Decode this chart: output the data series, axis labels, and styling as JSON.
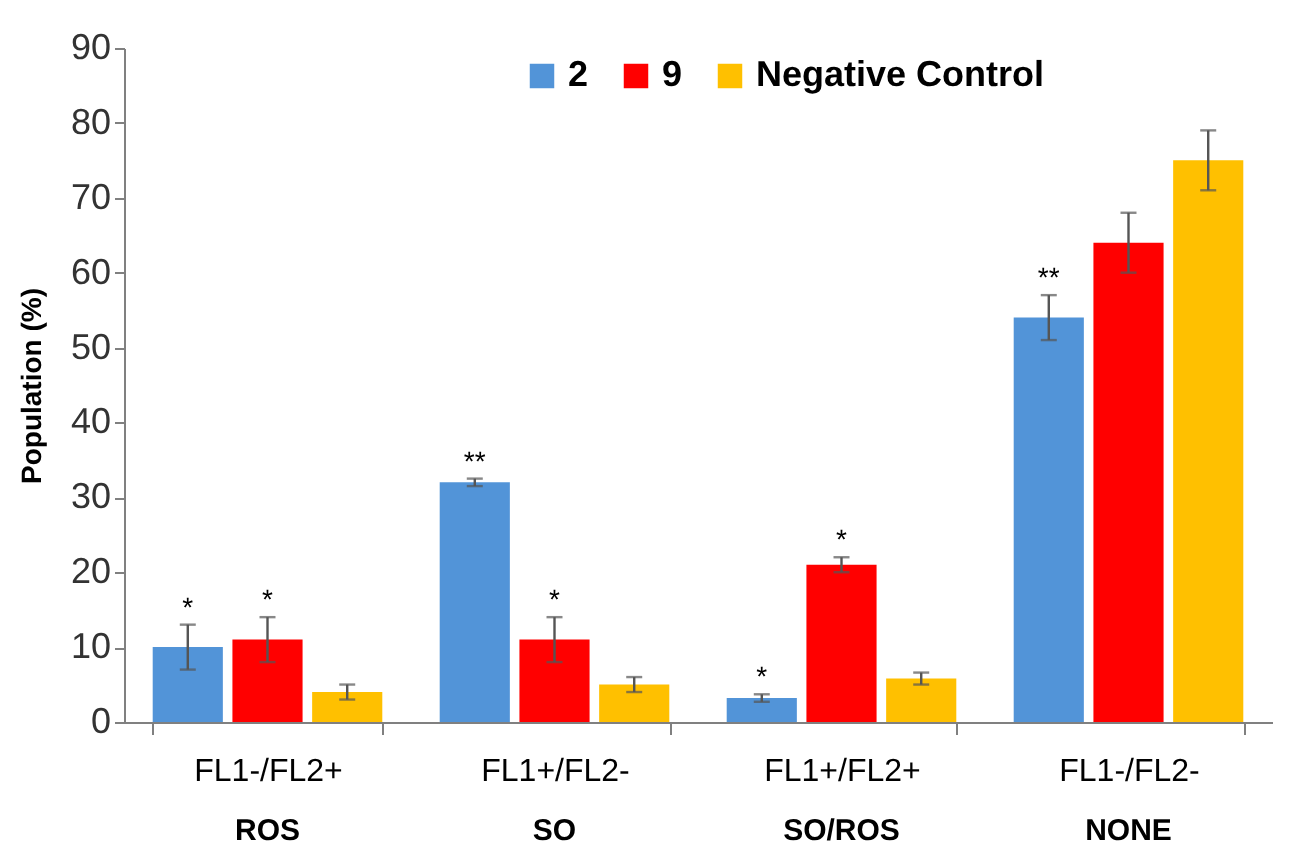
{
  "chart_data": {
    "type": "bar",
    "ylabel": "Population (%)",
    "categories": [
      "FL1-/FL2+",
      "FL1+/FL2-",
      "FL1+/FL2+",
      "FL1-/FL2-"
    ],
    "series": [
      {
        "name": "2",
        "color": "#5294d8",
        "values": [
          10,
          32,
          3.2,
          54
        ],
        "errors": [
          3,
          0.5,
          0.5,
          3
        ],
        "value_labels": [
          "*",
          "**",
          "*",
          "**"
        ]
      },
      {
        "name": "9",
        "color": "#ff0000",
        "values": [
          11,
          11,
          21,
          64
        ],
        "errors": [
          3,
          3,
          1,
          4
        ],
        "value_labels": [
          "*",
          "*",
          "*",
          null
        ]
      },
      {
        "name": "Negative Control",
        "color": "#ffc000",
        "values": [
          4,
          5,
          5.8,
          75
        ],
        "errors": [
          1,
          1,
          0.8,
          4
        ],
        "value_labels": [
          null,
          null,
          null,
          null
        ]
      }
    ],
    "annotations": [
      "ROS",
      "SO",
      "SO/ROS",
      "NONE"
    ],
    "ylim": [
      0,
      90
    ],
    "yticks": [
      0,
      10,
      20,
      30,
      40,
      50,
      60,
      70,
      80,
      90
    ],
    "grid": false,
    "legend": "top"
  }
}
